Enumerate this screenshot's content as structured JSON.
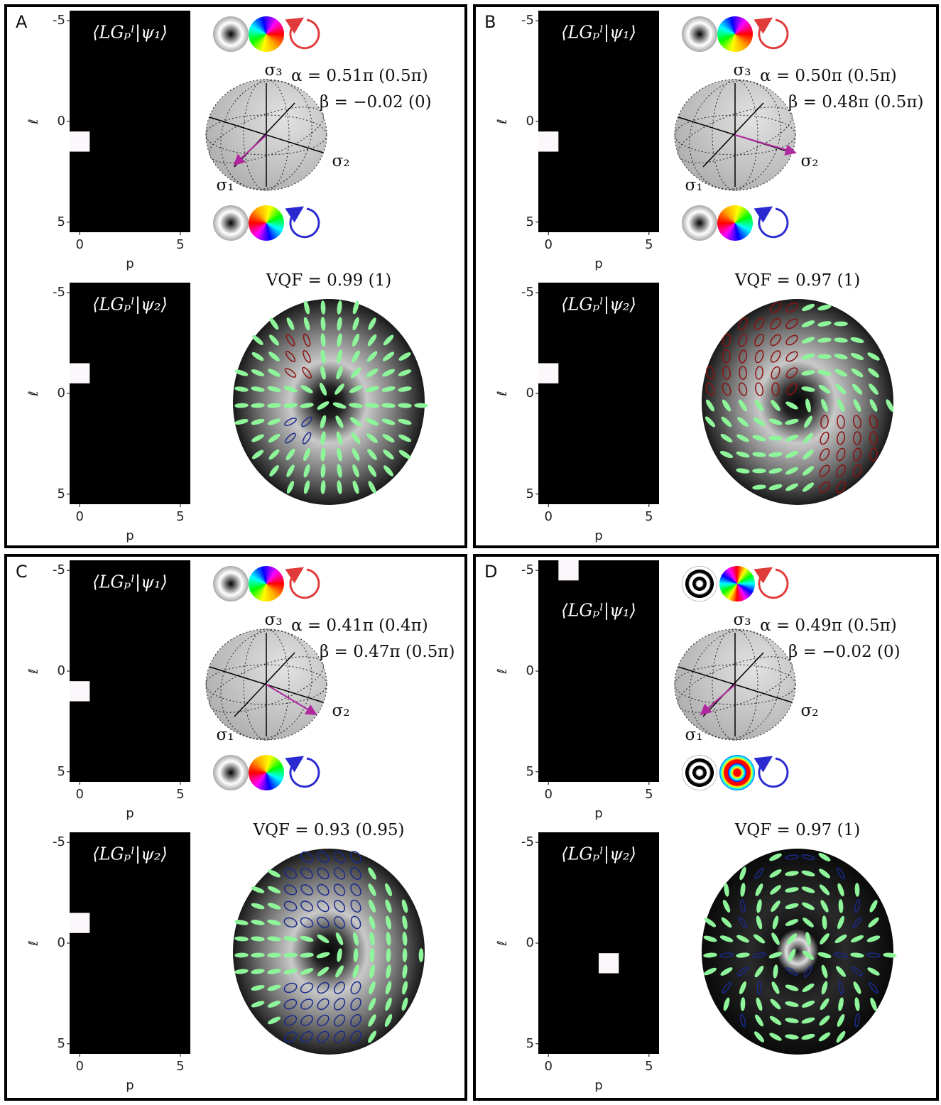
{
  "panels": [
    {
      "label": "A",
      "heatmaps": [
        {
          "title": "⟨LGₚˡ|ψ₁⟩",
          "ylabel": "ℓ",
          "xlabel": "p",
          "yticks": [
            -5,
            0,
            5
          ],
          "xticks": [
            0,
            5
          ],
          "bright_cell": {
            "p": 0,
            "l": 1
          }
        },
        {
          "title": "⟨LGₚˡ|ψ₂⟩",
          "ylabel": "ℓ",
          "xlabel": "p",
          "yticks": [
            -5,
            0,
            5
          ],
          "xticks": [
            0,
            5
          ],
          "bright_cell": {
            "p": 0,
            "l": -1
          }
        }
      ],
      "sphere": {
        "sigma3": "σ₃",
        "sigma1": "σ₁",
        "sigma2": "σ₂",
        "alpha": "α = 0.51π (0.5π)",
        "beta": "β = −0.02 (0)"
      },
      "vqf": "VQF = 0.99 (1)"
    },
    {
      "label": "B",
      "heatmaps": [
        {
          "title": "⟨LGₚˡ|ψ₁⟩",
          "ylabel": "ℓ",
          "xlabel": "p",
          "yticks": [
            -5,
            0,
            5
          ],
          "xticks": [
            0,
            5
          ],
          "bright_cell": {
            "p": 0,
            "l": 1
          }
        },
        {
          "title": "⟨LGₚˡ|ψ₂⟩",
          "ylabel": "ℓ",
          "xlabel": "p",
          "yticks": [
            -5,
            0,
            5
          ],
          "xticks": [
            0,
            5
          ],
          "bright_cell": {
            "p": 0,
            "l": -1
          }
        }
      ],
      "sphere": {
        "sigma3": "σ₃",
        "sigma1": "σ₁",
        "sigma2": "σ₂",
        "alpha": "α = 0.50π (0.5π)",
        "beta": "β = 0.48π (0.5π)"
      },
      "vqf": "VQF = 0.97 (1)"
    },
    {
      "label": "C",
      "heatmaps": [
        {
          "title": "⟨LGₚˡ|ψ₁⟩",
          "ylabel": "ℓ",
          "xlabel": "p",
          "yticks": [
            -5,
            0,
            5
          ],
          "xticks": [
            0,
            5
          ],
          "bright_cell": {
            "p": 0,
            "l": 1
          }
        },
        {
          "title": "⟨LGₚˡ|ψ₂⟩",
          "ylabel": "ℓ",
          "xlabel": "p",
          "yticks": [
            -5,
            0,
            5
          ],
          "xticks": [
            0,
            5
          ],
          "bright_cell": {
            "p": 0,
            "l": -1
          }
        }
      ],
      "sphere": {
        "sigma3": "σ₃",
        "sigma1": "σ₁",
        "sigma2": "σ₂",
        "alpha": "α = 0.41π (0.4π)",
        "beta": "β = 0.47π (0.5π)"
      },
      "vqf": "VQF = 0.93 (0.95)"
    },
    {
      "label": "D",
      "heatmaps": [
        {
          "title": "⟨LGₚˡ|ψ₁⟩",
          "ylabel": "ℓ",
          "xlabel": "p",
          "yticks": [
            -5,
            0,
            5
          ],
          "xticks": [
            0,
            5
          ],
          "bright_cell": {
            "p": 1,
            "l": -5
          }
        },
        {
          "title": "⟨LGₚˡ|ψ₂⟩",
          "ylabel": "ℓ",
          "xlabel": "p",
          "yticks": [
            -5,
            0,
            5
          ],
          "xticks": [
            0,
            5
          ],
          "bright_cell": {
            "p": 3,
            "l": 1
          }
        }
      ],
      "sphere": {
        "sigma3": "σ₃",
        "sigma1": "σ₁",
        "sigma2": "σ₂",
        "alpha": "α = 0.49π (0.5π)",
        "beta": "β = −0.02 (0)"
      },
      "vqf": "VQF = 0.97 (1)"
    }
  ]
}
